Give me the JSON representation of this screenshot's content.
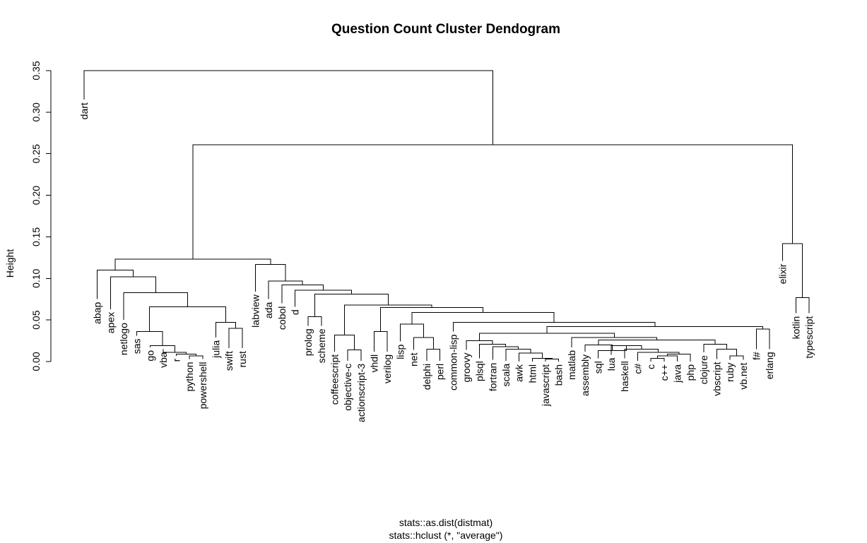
{
  "chart_data": {
    "type": "dendrogram",
    "title": "Question Count Cluster Dendogram",
    "ylabel": "Height",
    "xlabel_line1": "stats::as.dist(distmat)",
    "xlabel_line2": "stats::hclust (*, \"average\")",
    "ylim": [
      0,
      0.35
    ],
    "yticks": [
      "0.00",
      "0.05",
      "0.10",
      "0.15",
      "0.20",
      "0.25",
      "0.30",
      "0.35"
    ],
    "leaves": [
      "dart",
      "abap",
      "apex",
      "netlogo",
      "sas",
      "go",
      "vba",
      "r",
      "python",
      "powershell",
      "julia",
      "swift",
      "rust",
      "labview",
      "ada",
      "cobol",
      "d",
      "prolog",
      "scheme",
      "coffeescript",
      "objective-c",
      "actionscript-3",
      "vhdl",
      "verilog",
      "lisp",
      "net",
      "delphi",
      "perl",
      "common-lisp",
      "groovy",
      "plsql",
      "fortran",
      "scala",
      "awk",
      "html",
      "javascript",
      "bash",
      "matlab",
      "assembly",
      "sql",
      "lua",
      "haskell",
      "c#",
      "c",
      "c++",
      "java",
      "php",
      "clojure",
      "vbscript",
      "ruby",
      "vb.net",
      "f#",
      "erlang",
      "elixir",
      "kotlin",
      "typescript"
    ],
    "merges": [
      {
        "a": "python",
        "b": "powershell",
        "h": 0.007
      },
      {
        "a": "r",
        "b": "#1",
        "h": 0.009
      },
      {
        "a": "vba",
        "b": "#2",
        "h": 0.011
      },
      {
        "a": "go",
        "b": "#3",
        "h": 0.019
      },
      {
        "a": "sas",
        "b": "#4",
        "h": 0.036
      },
      {
        "a": "swift",
        "b": "rust",
        "h": 0.04
      },
      {
        "a": "julia",
        "b": "#6",
        "h": 0.047
      },
      {
        "a": "#5",
        "b": "#7",
        "h": 0.066
      },
      {
        "a": "netlogo",
        "b": "#8",
        "h": 0.083
      },
      {
        "a": "apex",
        "b": "#9",
        "h": 0.102
      },
      {
        "a": "abap",
        "b": "#10",
        "h": 0.11
      },
      {
        "a": "prolog",
        "b": "scheme",
        "h": 0.054
      },
      {
        "a": "objective-c",
        "b": "actionscript-3",
        "h": 0.014
      },
      {
        "a": "coffeescript",
        "b": "#13",
        "h": 0.032
      },
      {
        "a": "vhdl",
        "b": "verilog",
        "h": 0.036
      },
      {
        "a": "delphi",
        "b": "perl",
        "h": 0.015
      },
      {
        "a": "net",
        "b": "#16",
        "h": 0.029
      },
      {
        "a": "lisp",
        "b": "#17",
        "h": 0.045
      },
      {
        "a": "javascript",
        "b": "bash",
        "h": 0.003
      },
      {
        "a": "html",
        "b": "#19",
        "h": 0.004
      },
      {
        "a": "awk",
        "b": "#20",
        "h": 0.01
      },
      {
        "a": "scala",
        "b": "#21",
        "h": 0.015
      },
      {
        "a": "fortran",
        "b": "#22",
        "h": 0.018
      },
      {
        "a": "plsql",
        "b": "#23",
        "h": 0.021
      },
      {
        "a": "groovy",
        "b": "#24",
        "h": 0.025
      },
      {
        "a": "c",
        "b": "c++",
        "h": 0.004
      },
      {
        "a": "#26",
        "b": "java",
        "h": 0.007
      },
      {
        "a": "#27",
        "b": "php",
        "h": 0.009
      },
      {
        "a": "c#",
        "b": "#28",
        "h": 0.011
      },
      {
        "a": "haskell",
        "b": "#29",
        "h": 0.015
      },
      {
        "a": "lua",
        "b": "#30",
        "h": 0.019
      },
      {
        "a": "sql",
        "b": "#31",
        "h": 0.013
      },
      {
        "a": "assembly",
        "b": "#32",
        "h": 0.02
      },
      {
        "a": "ruby",
        "b": "vb.net",
        "h": 0.007
      },
      {
        "a": "vbscript",
        "b": "#34",
        "h": 0.015
      },
      {
        "a": "clojure",
        "b": "#35",
        "h": 0.021
      },
      {
        "a": "#33",
        "b": "#36",
        "h": 0.026
      },
      {
        "a": "matlab",
        "b": "#37",
        "h": 0.029
      },
      {
        "a": "#25",
        "b": "#38",
        "h": 0.034
      },
      {
        "a": "f#",
        "b": "erlang",
        "h": 0.039
      },
      {
        "a": "#39",
        "b": "#40",
        "h": 0.042
      },
      {
        "a": "common-lisp",
        "b": "#41",
        "h": 0.047
      },
      {
        "a": "#18",
        "b": "#42",
        "h": 0.059
      },
      {
        "a": "#15",
        "b": "#43",
        "h": 0.065
      },
      {
        "a": "#14",
        "b": "#44",
        "h": 0.068
      },
      {
        "a": "#12",
        "b": "#45",
        "h": 0.081
      },
      {
        "a": "d",
        "b": "#46",
        "h": 0.086
      },
      {
        "a": "cobol",
        "b": "#47",
        "h": 0.092
      },
      {
        "a": "ada",
        "b": "#48",
        "h": 0.097
      },
      {
        "a": "labview",
        "b": "#49",
        "h": 0.117
      },
      {
        "a": "#11",
        "b": "#50",
        "h": 0.123
      },
      {
        "a": "kotlin",
        "b": "typescript",
        "h": 0.077
      },
      {
        "a": "elixir",
        "b": "#52",
        "h": 0.142
      },
      {
        "a": "#51",
        "b": "#53",
        "h": 0.261
      },
      {
        "a": "dart",
        "b": "#54",
        "h": 0.35
      }
    ],
    "leaf_heights": {
      "dart": 0.315,
      "abap": 0.075,
      "apex": 0.063,
      "netlogo": 0.05,
      "sas": 0.031,
      "go": 0.017,
      "vba": 0.015,
      "r": 0.007,
      "python": 0.003,
      "powershell": 0.003,
      "julia": 0.029,
      "swift": 0.016,
      "rust": 0.016,
      "labview": 0.084,
      "ada": 0.075,
      "cobol": 0.07,
      "d": 0.066,
      "prolog": 0.043,
      "scheme": 0.043,
      "coffeescript": 0.012,
      "objective-c": 0.001,
      "actionscript-3": 0.001,
      "vhdl": 0.012,
      "verilog": 0.012,
      "lisp": 0.024,
      "net": 0.014,
      "delphi": 0.001,
      "perl": 0.001,
      "common-lisp": 0.036,
      "groovy": 0.014,
      "plsql": 0.004,
      "fortran": 0.002,
      "scala": 0.001,
      "awk": 0.0,
      "html": 0.0,
      "javascript": 0.0,
      "bash": 0.0,
      "matlab": 0.017,
      "assembly": 0.012,
      "sql": 0.004,
      "lua": 0.008,
      "haskell": 0.004,
      "c#": 0.001,
      "c": 0.0,
      "c++": 0.0,
      "java": 0.0,
      "php": 0.0,
      "clojure": 0.011,
      "vbscript": 0.003,
      "ruby": 0.002,
      "vb.net": 0.002,
      "f#": 0.015,
      "erlang": 0.015,
      "elixir": 0.121,
      "kotlin": 0.058,
      "typescript": 0.058
    }
  }
}
